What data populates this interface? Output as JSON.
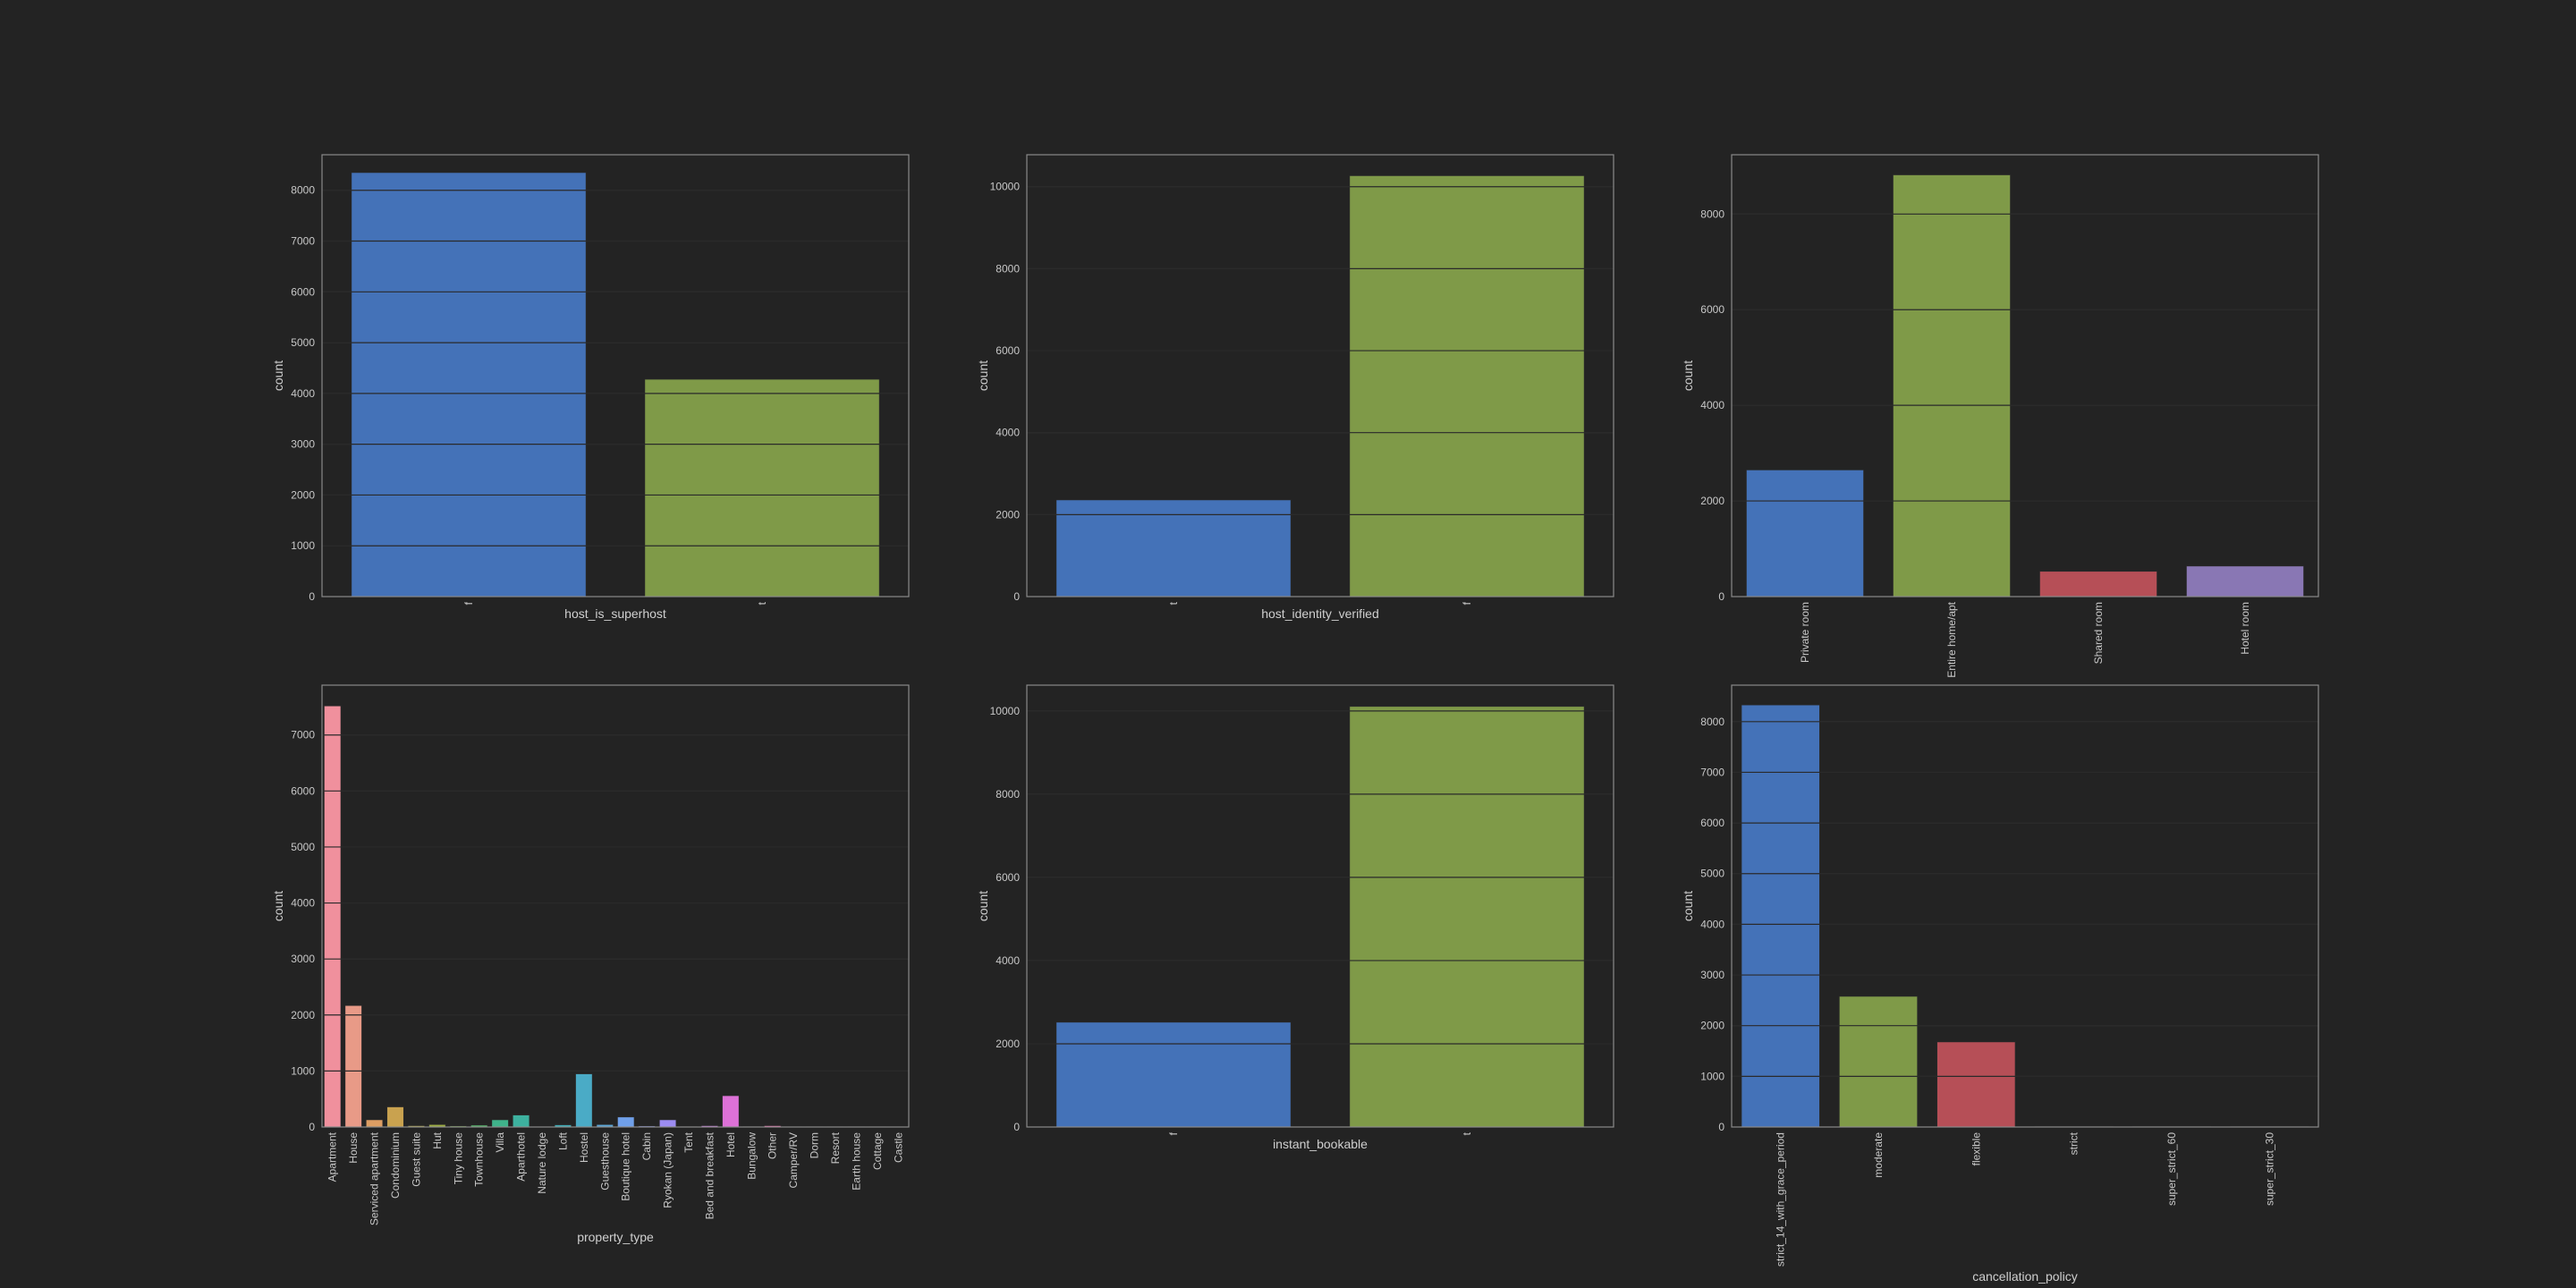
{
  "figure": {
    "background": "#232323"
  },
  "chart_data": [
    {
      "type": "bar",
      "xlabel": "host_is_superhost",
      "ylabel": "count",
      "categories": [
        "f",
        "t"
      ],
      "values": [
        8350,
        4280
      ],
      "colors": [
        "#4472b8",
        "#7f9a48"
      ],
      "ylim": [
        0,
        8700
      ],
      "yticks": [
        0,
        1000,
        2000,
        3000,
        4000,
        5000,
        6000,
        7000,
        8000
      ],
      "xtick_rotation": 90,
      "grid": true
    },
    {
      "type": "bar",
      "xlabel": "host_identity_verified",
      "ylabel": "count",
      "categories": [
        "t",
        "f"
      ],
      "values": [
        2360,
        10270
      ],
      "colors": [
        "#4472b8",
        "#7f9a48"
      ],
      "ylim": [
        0,
        10780
      ],
      "yticks": [
        0,
        2000,
        4000,
        6000,
        8000,
        10000
      ],
      "xtick_rotation": 90,
      "grid": true
    },
    {
      "type": "bar",
      "xlabel": "",
      "ylabel": "count",
      "categories": [
        "Private room",
        "Entire home/apt",
        "Shared room",
        "Hotel room"
      ],
      "values": [
        2650,
        8820,
        530,
        640
      ],
      "colors": [
        "#4472b8",
        "#7f9a48",
        "#b64f57",
        "#8977b4"
      ],
      "ylim": [
        0,
        9240
      ],
      "yticks": [
        0,
        2000,
        4000,
        6000,
        8000
      ],
      "xtick_rotation": 90,
      "grid": true
    },
    {
      "type": "bar",
      "xlabel": "property_type",
      "ylabel": "count",
      "categories": [
        "Apartment",
        "House",
        "Serviced apartment",
        "Condominium",
        "Guest suite",
        "Hut",
        "Tiny house",
        "Townhouse",
        "Villa",
        "Aparthotel",
        "Nature lodge",
        "Loft",
        "Hostel",
        "Guesthouse",
        "Boutique hotel",
        "Cabin",
        "Ryokan (Japan)",
        "Tent",
        "Bed and breakfast",
        "Hotel",
        "Bungalow",
        "Other",
        "Camper/RV",
        "Dorm",
        "Resort",
        "Earth house",
        "Cottage",
        "Castle"
      ],
      "values": [
        7520,
        2170,
        130,
        360,
        25,
        45,
        20,
        35,
        130,
        215,
        8,
        40,
        950,
        45,
        180,
        20,
        130,
        10,
        25,
        560,
        10,
        25,
        8,
        5,
        5,
        5,
        5,
        5
      ],
      "colors": [
        "#f0909d",
        "#e89a87",
        "#dd9e63",
        "#c9a24f",
        "#b3a845",
        "#9cad44",
        "#7cb046",
        "#56b36a",
        "#3fb38b",
        "#3db19f",
        "#3bafaa",
        "#3eadb6",
        "#4aabc6",
        "#5ca6d8",
        "#70a0ea",
        "#8597f2",
        "#9d8df2",
        "#b783ee",
        "#cc7ae4",
        "#dd71d7",
        "#e86bc6",
        "#ef72b2",
        "#f27aa0",
        "#f48a8f",
        "#f49a80",
        "#eea370",
        "#e2a864",
        "#d4ac5a"
      ],
      "ylim": [
        0,
        7890
      ],
      "yticks": [
        0,
        1000,
        2000,
        3000,
        4000,
        5000,
        6000,
        7000
      ],
      "xtick_rotation": 90,
      "grid": true
    },
    {
      "type": "bar",
      "xlabel": "instant_bookable",
      "ylabel": "count",
      "categories": [
        "f",
        "t"
      ],
      "values": [
        2520,
        10110
      ],
      "colors": [
        "#4472b8",
        "#7f9a48"
      ],
      "ylim": [
        0,
        10620
      ],
      "yticks": [
        0,
        2000,
        4000,
        6000,
        8000,
        10000
      ],
      "xtick_rotation": 90,
      "grid": true
    },
    {
      "type": "bar",
      "xlabel": "cancellation_policy",
      "ylabel": "count",
      "categories": [
        "strict_14_with_grace_period",
        "moderate",
        "flexible",
        "strict",
        "super_strict_60",
        "super_strict_30"
      ],
      "values": [
        8330,
        2580,
        1680,
        15,
        15,
        15
      ],
      "colors": [
        "#4472b8",
        "#7f9a48",
        "#b64f57",
        "#8977b4",
        "#c18b5a",
        "#4fa0c6"
      ],
      "ylim": [
        0,
        8720
      ],
      "yticks": [
        0,
        1000,
        2000,
        3000,
        4000,
        5000,
        6000,
        7000,
        8000
      ],
      "xtick_rotation": 90,
      "grid": true
    }
  ]
}
